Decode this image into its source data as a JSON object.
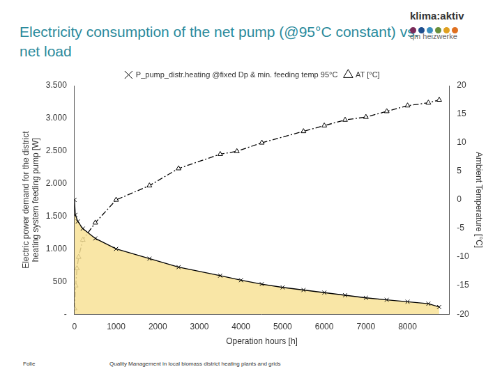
{
  "chart_data": {
    "type": "line",
    "title": "Electricity consumption of the net pump (@95°C constant) vs. net load",
    "x_label": "Operation hours [h]",
    "y_label": [
      "Electric power demand for the district",
      "heating system feeding pump [W]"
    ],
    "y2_label": "Ambient Temperature [°C]",
    "xlim": [
      0,
      9000
    ],
    "xticks": [
      0,
      1000,
      2000,
      3000,
      4000,
      5000,
      6000,
      7000,
      8000
    ],
    "ylim": [
      0,
      3500
    ],
    "yticks": [
      {
        "value": 0,
        "label": "-"
      },
      500,
      {
        "value": 1000,
        "label": "1.000"
      },
      {
        "value": 1500,
        "label": "1.500"
      },
      {
        "value": 2000,
        "label": "2.000"
      },
      {
        "value": 2500,
        "label": "2.500"
      },
      {
        "value": 3000,
        "label": "3.000"
      },
      {
        "value": 3500,
        "label": "3.500"
      }
    ],
    "y2lim": [
      -20,
      20
    ],
    "y2ticks": [
      -20,
      -15,
      -10,
      -5,
      0,
      5,
      10,
      15,
      20
    ],
    "grid": false,
    "legend": "top",
    "series": [
      {
        "name": "P_pump_distr.heating @fixed Dp & min. feeding temp 95°C",
        "color": "#000000",
        "marker": "x",
        "line_style": "solid",
        "x": [
          0,
          20,
          80,
          200,
          500,
          1000,
          1800,
          2500,
          3500,
          4000,
          4500,
          5000,
          5500,
          6000,
          6500,
          7000,
          7500,
          8000,
          8500,
          8760
        ],
        "values": [
          1750,
          1520,
          1420,
          1310,
          1160,
          1000,
          850,
          720,
          590,
          520,
          460,
          410,
          370,
          330,
          290,
          250,
          220,
          190,
          160,
          110
        ]
      },
      {
        "name": "AT [°C]",
        "color": "#000000",
        "marker": "triangle",
        "line_style": "dashdot",
        "axis": "y2",
        "x": [
          0,
          30,
          60,
          100,
          200,
          500,
          1000,
          1800,
          2500,
          3500,
          3900,
          4500,
          5500,
          6000,
          6500,
          7000,
          7500,
          8000,
          8500,
          8760
        ],
        "values": [
          -19,
          -15,
          -12,
          -10,
          -7,
          -4,
          0,
          2.5,
          5.5,
          8,
          8.5,
          10,
          12,
          13,
          14,
          14.5,
          15.5,
          16.5,
          17,
          17.5
        ]
      }
    ]
  },
  "logo": [
    "klima:aktiv",
    "qm heizwerke"
  ],
  "footer": [
    "Folie",
    "Quality Management in local biomass district heating plants and grids"
  ]
}
